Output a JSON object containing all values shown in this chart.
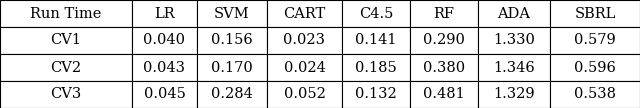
{
  "col_headers": [
    "Run Time",
    "LR",
    "SVM",
    "CART",
    "C4.5",
    "RF",
    "ADA",
    "SBRL"
  ],
  "rows": [
    [
      "CV1",
      "0.040",
      "0.156",
      "0.023",
      "0.141",
      "0.290",
      "1.330",
      "0.579"
    ],
    [
      "CV2",
      "0.043",
      "0.170",
      "0.024",
      "0.185",
      "0.380",
      "1.346",
      "0.596"
    ],
    [
      "CV3",
      "0.045",
      "0.284",
      "0.052",
      "0.132",
      "0.481",
      "1.329",
      "0.538"
    ]
  ],
  "fig_width": 6.4,
  "fig_height": 1.08,
  "dpi": 100,
  "font_size": 10.5,
  "background_color": "#ffffff",
  "edge_color": "#000000",
  "text_color": "#000000"
}
